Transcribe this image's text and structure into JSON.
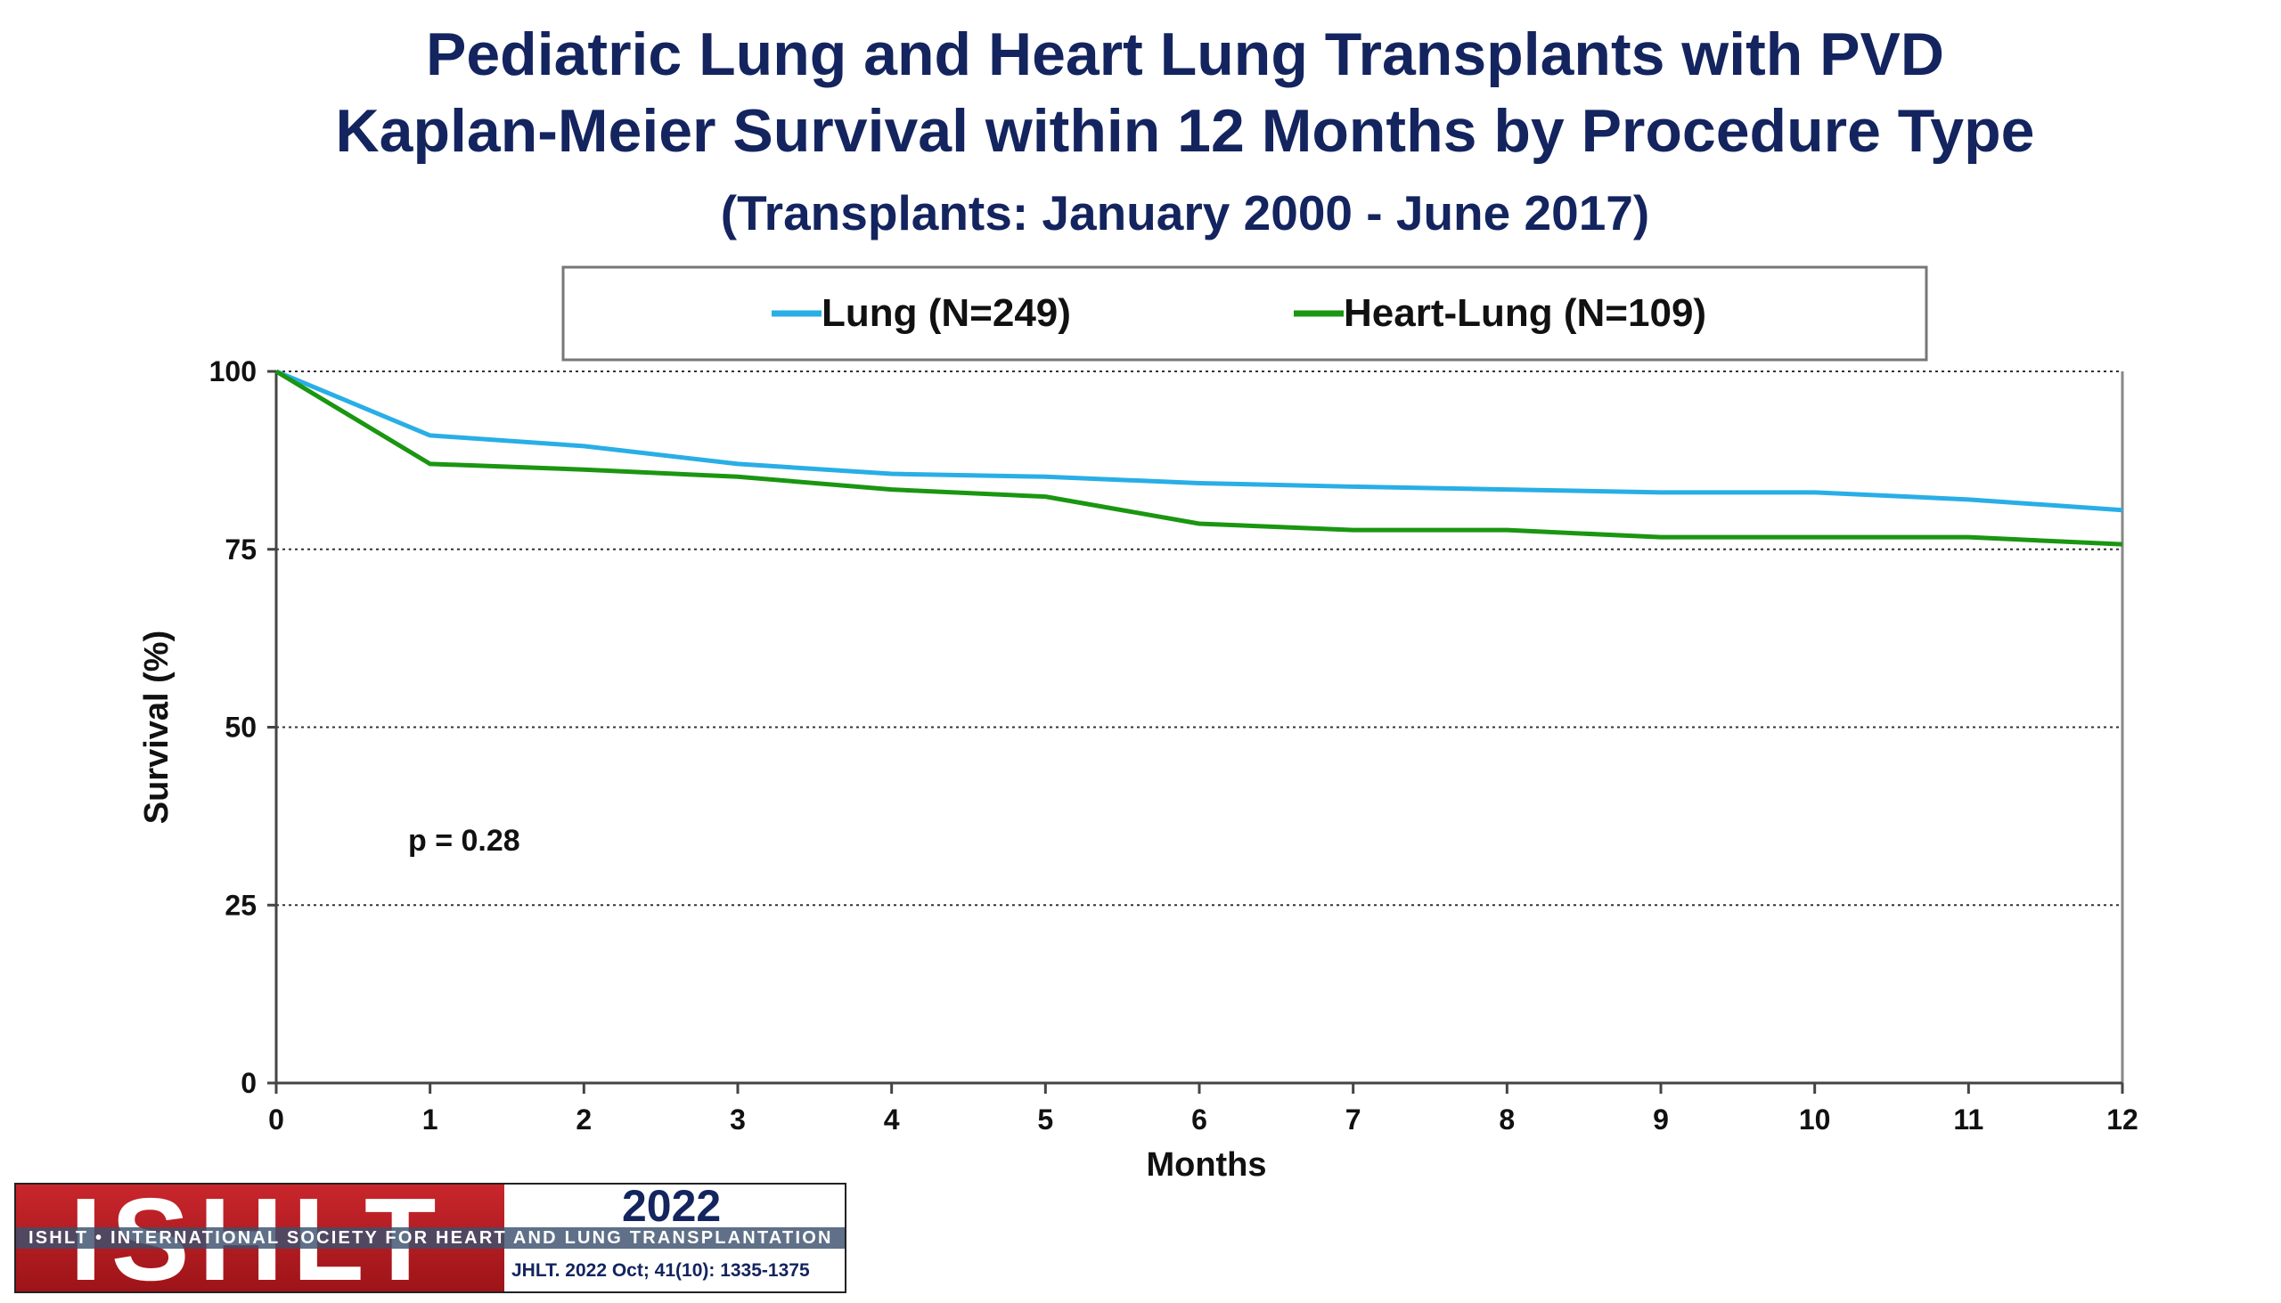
{
  "header": {
    "title_line1": "Pediatric Lung and Heart Lung Transplants with PVD",
    "title_line2": "Kaplan-Meier Survival within 12 Months by Procedure Type",
    "subtitle": "(Transplants: January 2000 - June 2017)"
  },
  "chart_data": {
    "type": "line",
    "xlabel": "Months",
    "ylabel": "Survival (%)",
    "xlim": [
      0,
      12
    ],
    "ylim": [
      0,
      100
    ],
    "x_ticks": [
      0,
      1,
      2,
      3,
      4,
      5,
      6,
      7,
      8,
      9,
      10,
      11,
      12
    ],
    "y_ticks": [
      0,
      25,
      50,
      75,
      100
    ],
    "grid": "horizontal dotted",
    "legend": "top",
    "annotation": "p = 0.28",
    "x": [
      0,
      1,
      2,
      3,
      4,
      5,
      6,
      7,
      8,
      9,
      10,
      11,
      12
    ],
    "series": [
      {
        "name": "Lung (N=249)",
        "color": "#29aee6",
        "values": [
          100,
          91,
          89.5,
          87,
          85.6,
          85.2,
          84.3,
          83.8,
          83.4,
          83,
          83,
          82,
          80.5
        ]
      },
      {
        "name": "Heart-Lung (N=109)",
        "color": "#1a9611",
        "values": [
          100,
          87,
          86.2,
          85.2,
          83.4,
          82.4,
          78.6,
          77.7,
          77.7,
          76.7,
          76.7,
          76.7,
          75.7
        ]
      }
    ]
  },
  "logo": {
    "name": "ISHLT",
    "tagline": "ISHLT • INTERNATIONAL SOCIETY FOR HEART AND LUNG TRANSPLANTATION",
    "year": "2022",
    "citation": "JHLT. 2022 Oct; 41(10): 1335-1375"
  }
}
